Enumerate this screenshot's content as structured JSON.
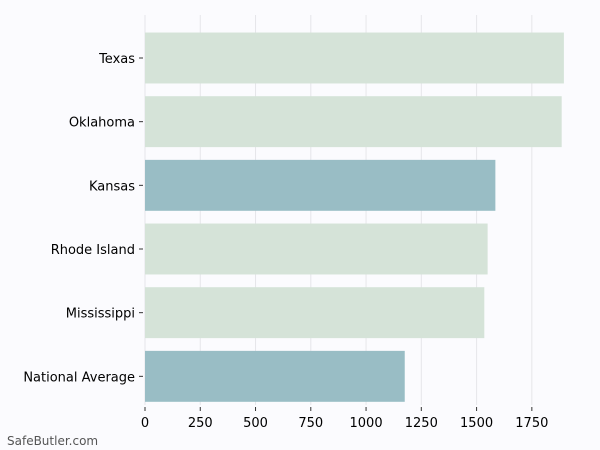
{
  "chart_data": {
    "type": "bar",
    "orientation": "horizontal",
    "categories": [
      "Texas",
      "Oklahoma",
      "Kansas",
      "Rhode Island",
      "Mississippi",
      "National Average"
    ],
    "values": [
      1895,
      1885,
      1585,
      1550,
      1535,
      1175
    ],
    "colors": [
      "#d5e3d8",
      "#d5e3d8",
      "#99bdc5",
      "#d5e3d8",
      "#d5e3d8",
      "#99bdc5"
    ],
    "xticks": [
      0,
      250,
      500,
      750,
      1000,
      1250,
      1500,
      1750
    ],
    "xlim": [
      0,
      1900
    ],
    "grid": true,
    "title": "",
    "xlabel": "",
    "ylabel": ""
  },
  "watermark": "SafeButler.com"
}
